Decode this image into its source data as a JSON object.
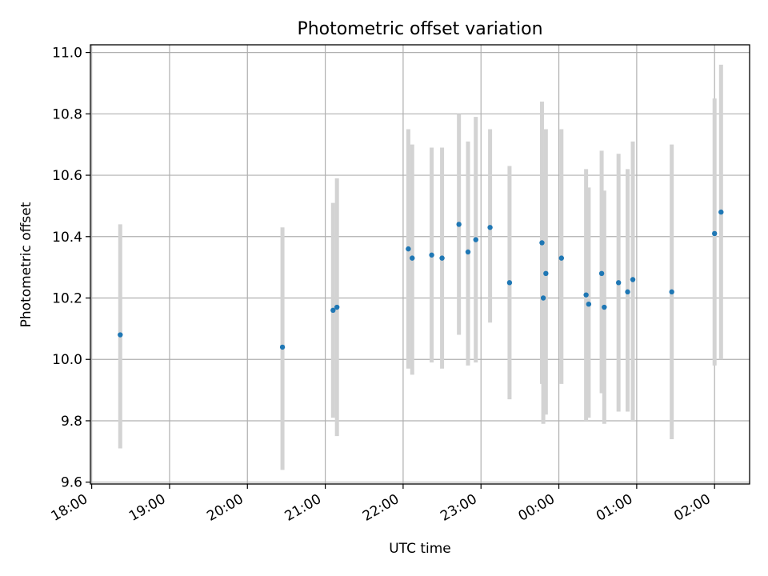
{
  "chart_data": {
    "type": "scatter",
    "title": "Photometric offset variation",
    "xlabel": "UTC time",
    "ylabel": "Photometric offset",
    "x_is_time": true,
    "xlim": [
      "17:59",
      "02:27"
    ],
    "ylim": [
      9.594,
      11.025
    ],
    "xticks": [
      "18:00",
      "19:00",
      "20:00",
      "21:00",
      "22:00",
      "23:00",
      "00:00",
      "01:00",
      "02:00"
    ],
    "yticks": [
      "9.6",
      "9.8",
      "10.0",
      "10.2",
      "10.4",
      "10.6",
      "10.8",
      "11.0"
    ],
    "grid": true,
    "colors": {
      "point": "#1f77b4",
      "errorbar": "#d3d3d3"
    },
    "series": [
      {
        "points": [
          {
            "time": "18:22",
            "y": 10.08,
            "ylow": 9.71,
            "yhigh": 10.44
          },
          {
            "time": "20:27",
            "y": 10.04,
            "ylow": 9.64,
            "yhigh": 10.43
          },
          {
            "time": "21:06",
            "y": 10.16,
            "ylow": 9.81,
            "yhigh": 10.51
          },
          {
            "time": "21:09",
            "y": 10.17,
            "ylow": 9.75,
            "yhigh": 10.59
          },
          {
            "time": "22:04",
            "y": 10.36,
            "ylow": 9.97,
            "yhigh": 10.75
          },
          {
            "time": "22:07",
            "y": 10.33,
            "ylow": 9.95,
            "yhigh": 10.7
          },
          {
            "time": "22:22",
            "y": 10.34,
            "ylow": 9.99,
            "yhigh": 10.69
          },
          {
            "time": "22:30",
            "y": 10.33,
            "ylow": 9.97,
            "yhigh": 10.69
          },
          {
            "time": "22:43",
            "y": 10.44,
            "ylow": 10.08,
            "yhigh": 10.8
          },
          {
            "time": "22:50",
            "y": 10.35,
            "ylow": 9.98,
            "yhigh": 10.71
          },
          {
            "time": "22:56",
            "y": 10.39,
            "ylow": 9.99,
            "yhigh": 10.79
          },
          {
            "time": "23:07",
            "y": 10.43,
            "ylow": 10.12,
            "yhigh": 10.75
          },
          {
            "time": "23:22",
            "y": 10.25,
            "ylow": 9.87,
            "yhigh": 10.63
          },
          {
            "time": "23:47",
            "y": 10.38,
            "ylow": 9.92,
            "yhigh": 10.84
          },
          {
            "time": "23:48",
            "y": 10.2,
            "ylow": 9.79,
            "yhigh": 10.61
          },
          {
            "time": "23:50",
            "y": 10.28,
            "ylow": 9.82,
            "yhigh": 10.75
          },
          {
            "time": "00:02",
            "y": 10.33,
            "ylow": 9.92,
            "yhigh": 10.75
          },
          {
            "time": "00:21",
            "y": 10.21,
            "ylow": 9.8,
            "yhigh": 10.62
          },
          {
            "time": "00:23",
            "y": 10.18,
            "ylow": 9.81,
            "yhigh": 10.56
          },
          {
            "time": "00:33",
            "y": 10.28,
            "ylow": 9.89,
            "yhigh": 10.68
          },
          {
            "time": "00:35",
            "y": 10.17,
            "ylow": 9.79,
            "yhigh": 10.55
          },
          {
            "time": "00:46",
            "y": 10.25,
            "ylow": 9.83,
            "yhigh": 10.67
          },
          {
            "time": "00:53",
            "y": 10.22,
            "ylow": 9.83,
            "yhigh": 10.62
          },
          {
            "time": "00:57",
            "y": 10.26,
            "ylow": 9.8,
            "yhigh": 10.71
          },
          {
            "time": "01:27",
            "y": 10.22,
            "ylow": 9.74,
            "yhigh": 10.7
          },
          {
            "time": "02:00",
            "y": 10.41,
            "ylow": 9.98,
            "yhigh": 10.85
          },
          {
            "time": "02:05",
            "y": 10.48,
            "ylow": 10.0,
            "yhigh": 10.96
          }
        ]
      }
    ]
  }
}
